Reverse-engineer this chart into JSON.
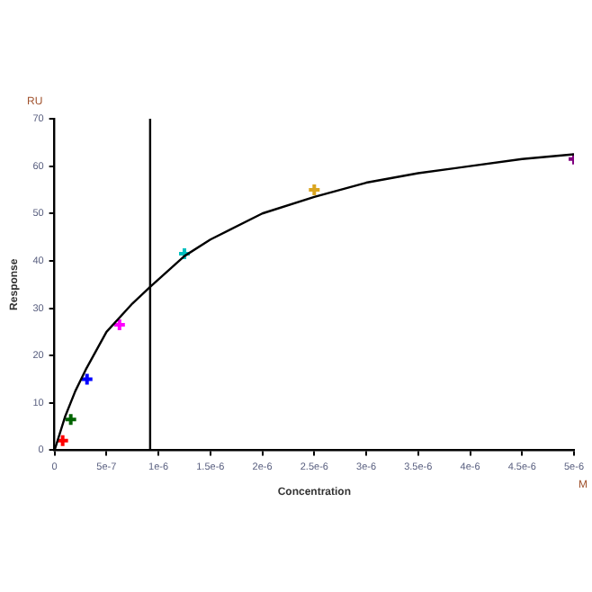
{
  "chart_data": {
    "type": "scatter",
    "xlabel": "Concentration",
    "ylabel": "Response",
    "annotations": [
      "RU",
      "M"
    ],
    "xlim": [
      0,
      5e-06
    ],
    "ylim": [
      0,
      70
    ],
    "xticks": [
      0,
      {
        "value": 5e-07,
        "label": "5e-7"
      },
      {
        "value": 1e-06,
        "label": "1e-6"
      },
      {
        "value": 1.5e-06,
        "label": "1.5e-6"
      },
      {
        "value": 2e-06,
        "label": "2e-6"
      },
      {
        "value": 2.5e-06,
        "label": "2.5e-6"
      },
      {
        "value": 3e-06,
        "label": "3e-6"
      },
      {
        "value": 3.5e-06,
        "label": "3.5e-6"
      },
      {
        "value": 4e-06,
        "label": "4e-6"
      },
      {
        "value": 4.5e-06,
        "label": "4.5e-6"
      },
      {
        "value": 5e-06,
        "label": "5e-6"
      }
    ],
    "yticks": [
      0,
      10,
      20,
      30,
      40,
      50,
      60,
      70
    ],
    "grid": false,
    "legend": false,
    "marker": "cross",
    "ref_lines": [
      {
        "axis": "x",
        "value": 9.2e-07,
        "color": "#000000"
      }
    ],
    "series": [
      {
        "type": "line",
        "color": "#000000",
        "marker": "none",
        "x": [
          0,
          1e-07,
          2e-07,
          3e-07,
          5e-07,
          7.5e-07,
          9.2e-07,
          1.25e-06,
          1.5e-06,
          2e-06,
          2.5e-06,
          3e-06,
          3.5e-06,
          4e-06,
          4.5e-06,
          5e-06
        ],
        "values": [
          0,
          7,
          12.5,
          17,
          25,
          31,
          34.5,
          41,
          44.5,
          50,
          53.5,
          56.5,
          58.5,
          60,
          61.5,
          62.5
        ]
      },
      {
        "x": [
          7.8e-08,
          1.56e-07,
          3.125e-07,
          6.25e-07,
          1.25e-06,
          2.5e-06,
          5e-06
        ],
        "values": [
          2,
          6.5,
          15,
          26.5,
          41.5,
          55,
          61.5
        ],
        "colors": [
          "#ff0000",
          "#006400",
          "#0000ff",
          "#ff00ff",
          "#00c0c0",
          "#daa520",
          "#800080"
        ]
      }
    ]
  }
}
